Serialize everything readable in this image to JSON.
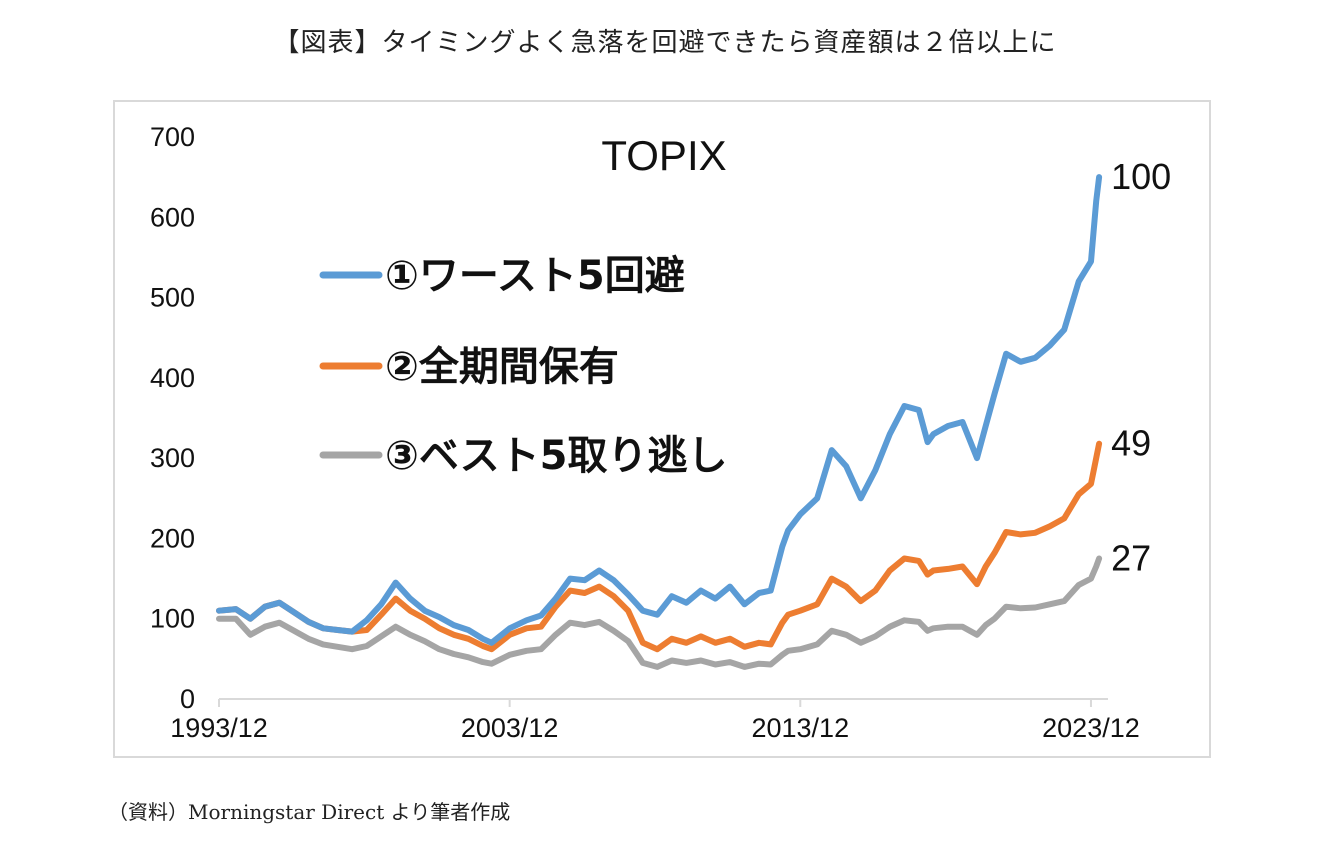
{
  "figure_title": "【図表】タイミングよく急落を回避できたら資産額は２倍以上に",
  "source_note": "（資料）Morningstar Direct より筆者作成",
  "chart_data": {
    "type": "line",
    "title": "TOPIX",
    "xlabel": "",
    "ylabel": "",
    "x_tick_labels": [
      "1993/12",
      "2003/12",
      "2013/12",
      "2023/12"
    ],
    "x_tick_years": [
      1993.92,
      2003.92,
      2013.92,
      2023.92
    ],
    "xlim": [
      1993.92,
      2024.3
    ],
    "ylim": [
      0,
      700
    ],
    "y_ticks": [
      0,
      100,
      200,
      300,
      400,
      500,
      600,
      700
    ],
    "grid": false,
    "legend_position": "upper-left",
    "series": [
      {
        "name": "①ワースト5回避",
        "color": "#5b9bd5",
        "end_label": "100",
        "x": [
          1993.92,
          1994.5,
          1995.0,
          1995.5,
          1996.0,
          1996.5,
          1997.0,
          1997.5,
          1998.0,
          1998.5,
          1999.0,
          1999.5,
          2000.0,
          2000.5,
          2001.0,
          2001.5,
          2002.0,
          2002.5,
          2003.0,
          2003.3,
          2003.92,
          2004.5,
          2005.0,
          2005.5,
          2006.0,
          2006.5,
          2007.0,
          2007.5,
          2008.0,
          2008.5,
          2009.0,
          2009.5,
          2010.0,
          2010.5,
          2011.0,
          2011.5,
          2012.0,
          2012.5,
          2012.9,
          2013.3,
          2013.5,
          2013.92,
          2014.5,
          2015.0,
          2015.5,
          2016.0,
          2016.5,
          2017.0,
          2017.5,
          2018.0,
          2018.3,
          2018.5,
          2019.0,
          2019.5,
          2020.0,
          2020.3,
          2020.6,
          2021.0,
          2021.5,
          2022.0,
          2022.5,
          2023.0,
          2023.5,
          2023.92,
          2024.1,
          2024.2
        ],
        "y": [
          110,
          112,
          100,
          115,
          120,
          108,
          96,
          88,
          86,
          84,
          98,
          118,
          145,
          125,
          110,
          102,
          92,
          86,
          75,
          70,
          88,
          98,
          104,
          125,
          150,
          148,
          160,
          148,
          130,
          110,
          105,
          128,
          120,
          135,
          125,
          140,
          118,
          132,
          135,
          190,
          210,
          230,
          250,
          310,
          290,
          250,
          285,
          330,
          365,
          360,
          320,
          330,
          340,
          345,
          300,
          340,
          380,
          430,
          420,
          425,
          440,
          460,
          520,
          545,
          620,
          650
        ]
      },
      {
        "name": "②全期間保有",
        "color": "#ed7d31",
        "end_label": "49",
        "x": [
          1993.92,
          1994.5,
          1995.0,
          1995.5,
          1996.0,
          1996.5,
          1997.0,
          1997.5,
          1998.0,
          1998.5,
          1999.0,
          1999.5,
          2000.0,
          2000.5,
          2001.0,
          2001.5,
          2002.0,
          2002.5,
          2003.0,
          2003.3,
          2003.92,
          2004.5,
          2005.0,
          2005.5,
          2006.0,
          2006.5,
          2007.0,
          2007.5,
          2008.0,
          2008.5,
          2009.0,
          2009.5,
          2010.0,
          2010.5,
          2011.0,
          2011.5,
          2012.0,
          2012.5,
          2012.9,
          2013.3,
          2013.5,
          2013.92,
          2014.5,
          2015.0,
          2015.5,
          2016.0,
          2016.5,
          2017.0,
          2017.5,
          2018.0,
          2018.3,
          2018.5,
          2019.0,
          2019.5,
          2020.0,
          2020.3,
          2020.6,
          2021.0,
          2021.5,
          2022.0,
          2022.5,
          2023.0,
          2023.5,
          2023.92,
          2024.1,
          2024.2
        ],
        "y": [
          110,
          112,
          100,
          115,
          120,
          108,
          96,
          88,
          86,
          84,
          86,
          105,
          125,
          110,
          100,
          88,
          80,
          75,
          66,
          62,
          80,
          88,
          90,
          115,
          135,
          132,
          140,
          128,
          110,
          70,
          62,
          75,
          70,
          78,
          70,
          75,
          65,
          70,
          68,
          95,
          105,
          110,
          118,
          150,
          140,
          122,
          135,
          160,
          175,
          172,
          155,
          160,
          162,
          165,
          143,
          165,
          182,
          208,
          205,
          207,
          215,
          225,
          255,
          268,
          300,
          318
        ]
      },
      {
        "name": "③ベスト5取り逃し",
        "color": "#a5a5a5",
        "end_label": "27",
        "x": [
          1993.92,
          1994.5,
          1995.0,
          1995.5,
          1996.0,
          1996.5,
          1997.0,
          1997.5,
          1998.0,
          1998.5,
          1999.0,
          1999.5,
          2000.0,
          2000.5,
          2001.0,
          2001.5,
          2002.0,
          2002.5,
          2003.0,
          2003.3,
          2003.92,
          2004.5,
          2005.0,
          2005.5,
          2006.0,
          2006.5,
          2007.0,
          2007.5,
          2008.0,
          2008.5,
          2009.0,
          2009.5,
          2010.0,
          2010.5,
          2011.0,
          2011.5,
          2012.0,
          2012.5,
          2012.9,
          2013.3,
          2013.5,
          2013.92,
          2014.5,
          2015.0,
          2015.5,
          2016.0,
          2016.5,
          2017.0,
          2017.5,
          2018.0,
          2018.3,
          2018.5,
          2019.0,
          2019.5,
          2020.0,
          2020.3,
          2020.6,
          2021.0,
          2021.5,
          2022.0,
          2022.5,
          2023.0,
          2023.5,
          2023.92,
          2024.1,
          2024.2
        ],
        "y": [
          100,
          100,
          80,
          90,
          95,
          85,
          75,
          68,
          65,
          62,
          66,
          78,
          90,
          80,
          72,
          62,
          56,
          52,
          46,
          44,
          55,
          60,
          62,
          80,
          95,
          92,
          96,
          85,
          72,
          45,
          40,
          48,
          45,
          48,
          43,
          46,
          40,
          44,
          43,
          55,
          60,
          62,
          68,
          85,
          80,
          70,
          78,
          90,
          98,
          96,
          85,
          88,
          90,
          90,
          80,
          92,
          100,
          115,
          113,
          114,
          118,
          122,
          142,
          150,
          165,
          175
        ]
      }
    ]
  }
}
